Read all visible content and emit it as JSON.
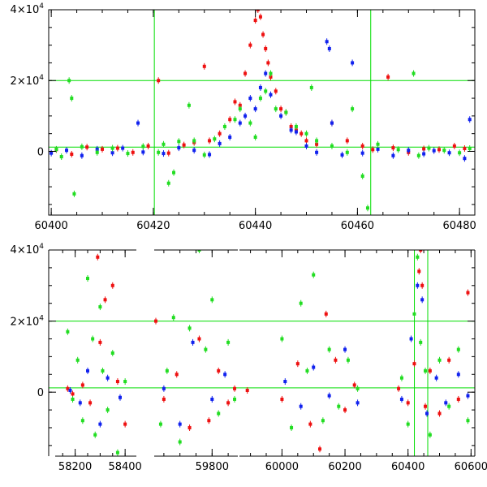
{
  "chart_data": [
    {
      "type": "scatter",
      "title": "",
      "xlabel": "",
      "ylabel": "",
      "xlim": [
        60399.5,
        60483
      ],
      "ylim": [
        -18000,
        40000
      ],
      "x_ticks": [
        {
          "value": 60400,
          "label": "60400"
        },
        {
          "value": 60420,
          "label": "60420"
        },
        {
          "value": 60440,
          "label": "60440"
        },
        {
          "value": 60460,
          "label": "60460"
        },
        {
          "value": 60480,
          "label": "60480"
        }
      ],
      "y_ticks": [
        {
          "value": 0,
          "label": "0",
          "exp": ""
        },
        {
          "value": 20000,
          "label": "2×10",
          "exp": "4"
        },
        {
          "value": 40000,
          "label": "4×10",
          "exp": "4"
        }
      ],
      "guide_lines": {
        "x": [
          60420.2,
          60462.6
        ],
        "y": [
          20000,
          1200
        ]
      },
      "guide_color": "#00dd00",
      "series": [
        {
          "color": "#ee1111",
          "points": [
            [
              60401,
              500
            ],
            [
              60404,
              -800
            ],
            [
              60407,
              1200
            ],
            [
              60410,
              600
            ],
            [
              60413,
              900
            ],
            [
              60416,
              -300
            ],
            [
              60419,
              1500
            ],
            [
              60421,
              20000
            ],
            [
              60423,
              -500
            ],
            [
              60426,
              1800
            ],
            [
              60428,
              2500
            ],
            [
              60430,
              24000
            ],
            [
              60431,
              3000
            ],
            [
              60433,
              5000
            ],
            [
              60435,
              9000
            ],
            [
              60436,
              14000
            ],
            [
              60437,
              13000
            ],
            [
              60438,
              22000
            ],
            [
              60439,
              30000
            ],
            [
              60440,
              37000
            ],
            [
              60440.5,
              40000
            ],
            [
              60441,
              38000
            ],
            [
              60441.5,
              33000
            ],
            [
              60442,
              29000
            ],
            [
              60442.5,
              25000
            ],
            [
              60443,
              21000
            ],
            [
              60444,
              17000
            ],
            [
              60445,
              12000
            ],
            [
              60446,
              11000
            ],
            [
              60447,
              7000
            ],
            [
              60448,
              6000
            ],
            [
              60449,
              5000
            ],
            [
              60450,
              3000
            ],
            [
              60452,
              2000
            ],
            [
              60455,
              8000
            ],
            [
              60458,
              3000
            ],
            [
              60461,
              1500
            ],
            [
              60463,
              500
            ],
            [
              60466,
              21000
            ],
            [
              60467,
              1000
            ],
            [
              60470,
              -300
            ],
            [
              60473,
              700
            ],
            [
              60476,
              500
            ],
            [
              60479,
              1500
            ],
            [
              60481,
              800
            ]
          ]
        },
        {
          "color": "#1122ee",
          "points": [
            [
              60400,
              -500
            ],
            [
              60403,
              300
            ],
            [
              60406,
              -1200
            ],
            [
              60409,
              600
            ],
            [
              60412,
              -400
            ],
            [
              60414,
              900
            ],
            [
              60417,
              8000
            ],
            [
              60418,
              -200
            ],
            [
              60422,
              -600
            ],
            [
              60425,
              1000
            ],
            [
              60428,
              300
            ],
            [
              60431,
              -900
            ],
            [
              60433,
              2200
            ],
            [
              60435,
              4000
            ],
            [
              60437,
              8000
            ],
            [
              60438,
              10000
            ],
            [
              60439,
              15000
            ],
            [
              60440,
              12000
            ],
            [
              60441,
              18000
            ],
            [
              60442,
              22000
            ],
            [
              60443,
              16000
            ],
            [
              60445,
              10000
            ],
            [
              60447,
              6000
            ],
            [
              60448,
              5500
            ],
            [
              60450,
              1500
            ],
            [
              60452,
              -300
            ],
            [
              60454,
              31000
            ],
            [
              60454.5,
              29000
            ],
            [
              60455,
              8000
            ],
            [
              60457,
              -1000
            ],
            [
              60459,
              25000
            ],
            [
              60461,
              -500
            ],
            [
              60464,
              600
            ],
            [
              60467,
              -1200
            ],
            [
              60470,
              300
            ],
            [
              60473,
              -700
            ],
            [
              60475,
              200
            ],
            [
              60478,
              -400
            ],
            [
              60481,
              -2000
            ],
            [
              60482,
              9000
            ]
          ]
        },
        {
          "color": "#22dd22",
          "points": [
            [
              60401,
              600
            ],
            [
              60402,
              -1500
            ],
            [
              60403.5,
              20000
            ],
            [
              60404,
              15000
            ],
            [
              60404.5,
              -12000
            ],
            [
              60406,
              1300
            ],
            [
              60409,
              -300
            ],
            [
              60412,
              900
            ],
            [
              60415,
              -600
            ],
            [
              60418,
              1400
            ],
            [
              60421,
              -300
            ],
            [
              60422,
              2000
            ],
            [
              60423,
              -9000
            ],
            [
              60424,
              -6000
            ],
            [
              60425,
              2800
            ],
            [
              60427,
              13000
            ],
            [
              60428,
              3000
            ],
            [
              60430,
              -1000
            ],
            [
              60432,
              3500
            ],
            [
              60434,
              7000
            ],
            [
              60436,
              9000
            ],
            [
              60437,
              12000
            ],
            [
              60439,
              8000
            ],
            [
              60440,
              4000
            ],
            [
              60441,
              15000
            ],
            [
              60442,
              17000
            ],
            [
              60443,
              22000
            ],
            [
              60444,
              12000
            ],
            [
              60446,
              11000
            ],
            [
              60448,
              7000
            ],
            [
              60450,
              5000
            ],
            [
              60451,
              18000
            ],
            [
              60452,
              3000
            ],
            [
              60455,
              1500
            ],
            [
              60458,
              -300
            ],
            [
              60459,
              12000
            ],
            [
              60461,
              -7000
            ],
            [
              60462,
              -16000
            ],
            [
              60464,
              2000
            ],
            [
              60468,
              500
            ],
            [
              60471,
              22000
            ],
            [
              60472,
              -1200
            ],
            [
              60474,
              900
            ],
            [
              60477,
              300
            ],
            [
              60480,
              -400
            ],
            [
              60482,
              800
            ]
          ]
        }
      ]
    },
    {
      "type": "scatter",
      "title": "",
      "xlabel": "",
      "ylabel": "",
      "segments": [
        {
          "xlim": [
            58120,
            58445
          ]
        },
        {
          "xlim": [
            59620,
            59880
          ]
        },
        {
          "xlim": [
            59865,
            60612
          ]
        }
      ],
      "ylim": [
        -18000,
        40000
      ],
      "x_ticks": [
        {
          "value": 58200,
          "label": "58200"
        },
        {
          "value": 58400,
          "label": "58400"
        },
        {
          "value": 59800,
          "label": "59800"
        },
        {
          "value": 60000,
          "label": "60000"
        },
        {
          "value": 60200,
          "label": "60200"
        },
        {
          "value": 60400,
          "label": "60400"
        },
        {
          "value": 60600,
          "label": "60600"
        }
      ],
      "y_ticks": [
        {
          "value": 0,
          "label": "0",
          "exp": ""
        },
        {
          "value": 20000,
          "label": "2×10",
          "exp": "4"
        },
        {
          "value": 40000,
          "label": "4×10",
          "exp": "4"
        }
      ],
      "guide_lines": {
        "x": [
          60420.2,
          60462.6
        ],
        "y": [
          20000,
          1200
        ]
      },
      "guide_color": "#00dd00",
      "series": [
        {
          "color": "#ee1111",
          "points": [
            [
              58170,
              1000
            ],
            [
              58190,
              -500
            ],
            [
              58230,
              2000
            ],
            [
              58260,
              -3000
            ],
            [
              58290,
              38000
            ],
            [
              58300,
              14000
            ],
            [
              58320,
              26000
            ],
            [
              58350,
              30000
            ],
            [
              58370,
              3000
            ],
            [
              58400,
              -9000
            ],
            [
              59625,
              20000
            ],
            [
              59650,
              -2000
            ],
            [
              59690,
              5000
            ],
            [
              59730,
              -10000
            ],
            [
              59760,
              15000
            ],
            [
              59790,
              -8000
            ],
            [
              59820,
              6000
            ],
            [
              59850,
              -3000
            ],
            [
              59870,
              1000
            ],
            [
              59890,
              500
            ],
            [
              60000,
              -2000
            ],
            [
              60050,
              8000
            ],
            [
              60090,
              -9000
            ],
            [
              60120,
              -16000
            ],
            [
              60140,
              22000
            ],
            [
              60170,
              9000
            ],
            [
              60200,
              -5000
            ],
            [
              60230,
              2000
            ],
            [
              60370,
              1000
            ],
            [
              60400,
              -3000
            ],
            [
              60420,
              8000
            ],
            [
              60435,
              34000
            ],
            [
              60440,
              40000
            ],
            [
              60445,
              30000
            ],
            [
              60455,
              -4000
            ],
            [
              60470,
              6000
            ],
            [
              60500,
              -6000
            ],
            [
              60530,
              9000
            ],
            [
              60560,
              -2000
            ],
            [
              60590,
              28000
            ]
          ]
        },
        {
          "color": "#1122ee",
          "points": [
            [
              58180,
              500
            ],
            [
              58220,
              -3000
            ],
            [
              58250,
              6000
            ],
            [
              58300,
              -9000
            ],
            [
              58330,
              4000
            ],
            [
              58380,
              -1500
            ],
            [
              59650,
              1000
            ],
            [
              59700,
              -9000
            ],
            [
              59740,
              14000
            ],
            [
              59800,
              -2000
            ],
            [
              59840,
              5000
            ],
            [
              60010,
              3000
            ],
            [
              60060,
              -4000
            ],
            [
              60100,
              7000
            ],
            [
              60150,
              -1000
            ],
            [
              60200,
              12000
            ],
            [
              60240,
              -3000
            ],
            [
              60380,
              -2000
            ],
            [
              60410,
              15000
            ],
            [
              60430,
              30000
            ],
            [
              60445,
              26000
            ],
            [
              60460,
              -6000
            ],
            [
              60490,
              4000
            ],
            [
              60520,
              -3000
            ],
            [
              60560,
              5000
            ],
            [
              60590,
              -1000
            ]
          ]
        },
        {
          "color": "#22dd22",
          "points": [
            [
              58170,
              17000
            ],
            [
              58190,
              -2000
            ],
            [
              58210,
              9000
            ],
            [
              58230,
              -8000
            ],
            [
              58250,
              32000
            ],
            [
              58270,
              15000
            ],
            [
              58280,
              -12000
            ],
            [
              58300,
              24000
            ],
            [
              58310,
              6000
            ],
            [
              58330,
              -5000
            ],
            [
              58350,
              11000
            ],
            [
              58370,
              -17000
            ],
            [
              58400,
              3000
            ],
            [
              59640,
              -9000
            ],
            [
              59660,
              6000
            ],
            [
              59680,
              21000
            ],
            [
              59700,
              -14000
            ],
            [
              59730,
              18000
            ],
            [
              59760,
              40000
            ],
            [
              59780,
              12000
            ],
            [
              59800,
              26000
            ],
            [
              59820,
              -6000
            ],
            [
              59850,
              14000
            ],
            [
              59870,
              -2000
            ],
            [
              60000,
              15000
            ],
            [
              60030,
              -10000
            ],
            [
              60060,
              25000
            ],
            [
              60080,
              6000
            ],
            [
              60100,
              33000
            ],
            [
              60130,
              -8000
            ],
            [
              60150,
              12000
            ],
            [
              60180,
              -4000
            ],
            [
              60210,
              9000
            ],
            [
              60240,
              1000
            ],
            [
              60380,
              4000
            ],
            [
              60400,
              -9000
            ],
            [
              60420,
              22000
            ],
            [
              60430,
              38000
            ],
            [
              60440,
              14000
            ],
            [
              60455,
              6000
            ],
            [
              60470,
              -12000
            ],
            [
              60500,
              9000
            ],
            [
              60530,
              -4000
            ],
            [
              60560,
              12000
            ],
            [
              60590,
              -8000
            ]
          ]
        }
      ]
    }
  ]
}
